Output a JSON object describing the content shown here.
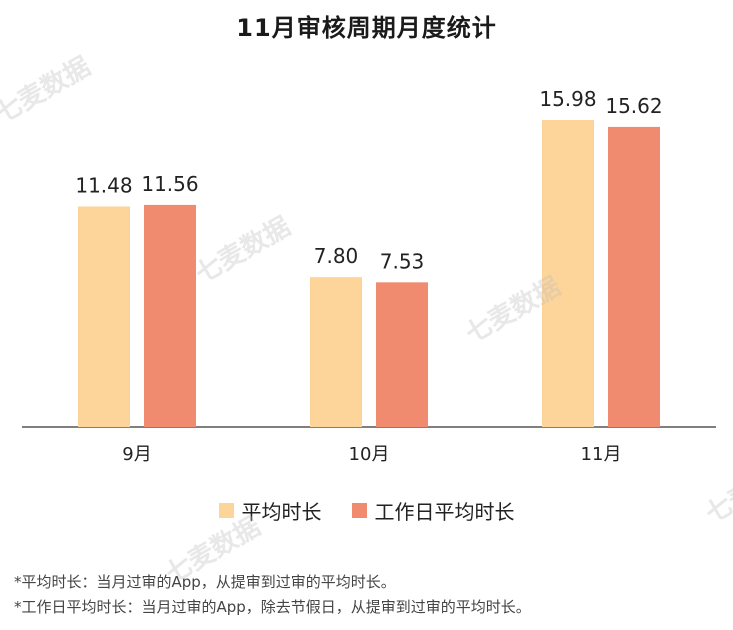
{
  "watermark": "七麦数据",
  "chart_data": {
    "type": "bar",
    "title": "11月审核周期月度统计",
    "categories": [
      "9月",
      "10月",
      "11月"
    ],
    "series": [
      {
        "name": "平均时长",
        "values": [
          11.48,
          7.8,
          15.98
        ],
        "color": "#fdd59a"
      },
      {
        "name": "工作日平均时长",
        "values": [
          11.56,
          7.53,
          15.62
        ],
        "color": "#f08b70"
      }
    ],
    "value_labels": [
      [
        "11.48",
        "7.80",
        "15.98"
      ],
      [
        "11.56",
        "7.53",
        "15.62"
      ]
    ],
    "ylim": [
      0,
      16.5
    ],
    "grid": false,
    "legend_position": "bottom-center"
  },
  "footnotes": [
    "*平均时长：当月过审的App，从提审到过审的平均时长。",
    "*工作日平均时长：当月过审的App，除去节假日，从提审到过审的平均时长。"
  ]
}
